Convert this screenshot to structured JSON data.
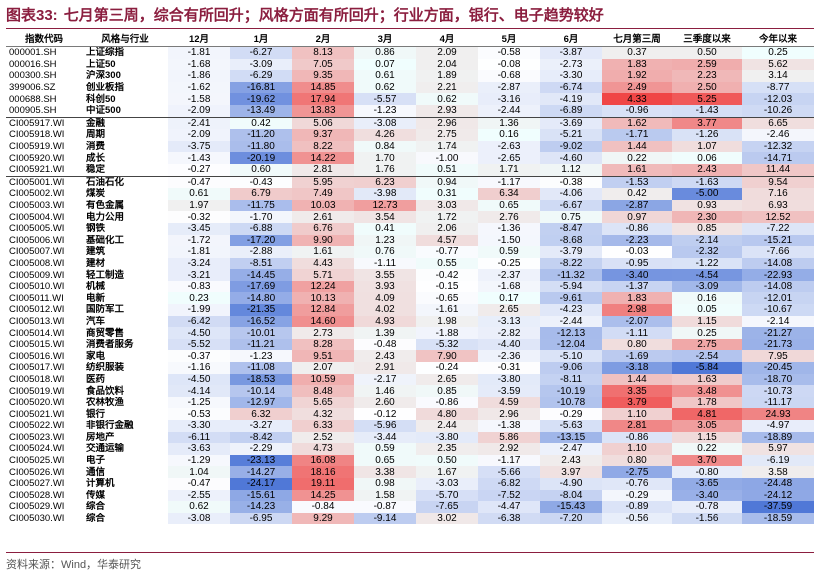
{
  "title": {
    "prefix": "图表33:",
    "text": "七月第三周，综合有所回升；风格方面有所回升；行业方面，银行、电子趋势较好"
  },
  "source": "资料来源：Wind，华泰研究",
  "columns": [
    "指数代码",
    "风格与行业",
    "12月",
    "1月",
    "2月",
    "3月",
    "4月",
    "5月",
    "6月",
    "七月第三周",
    "三季度以来",
    "今年以来"
  ],
  "rows": [
    {
      "code": "000001.SH",
      "name": "上证综指",
      "bold": true,
      "values": [
        "-1.81",
        "-6.27",
        "8.13",
        "0.86",
        "2.09",
        "-0.58",
        "-3.87",
        "0.37",
        "0.50",
        "0.25"
      ]
    },
    {
      "code": "000016.SH",
      "name": "上证50",
      "bold": true,
      "values": [
        "-1.68",
        "-3.09",
        "7.05",
        "0.07",
        "2.04",
        "-0.08",
        "-2.73",
        "1.83",
        "2.59",
        "5.62"
      ]
    },
    {
      "code": "000300.SH",
      "name": "沪深300",
      "bold": true,
      "values": [
        "-1.86",
        "-6.29",
        "9.35",
        "0.61",
        "1.89",
        "-0.68",
        "-3.30",
        "1.92",
        "2.23",
        "3.14"
      ]
    },
    {
      "code": "399006.SZ",
      "name": "创业板指",
      "bold": true,
      "values": [
        "-1.62",
        "-16.81",
        "14.85",
        "0.62",
        "2.21",
        "-2.87",
        "-6.74",
        "2.49",
        "2.50",
        "-8.77"
      ]
    },
    {
      "code": "000688.SH",
      "name": "科创50",
      "bold": true,
      "values": [
        "-1.58",
        "-19.62",
        "17.94",
        "-5.57",
        "0.62",
        "-3.16",
        "-4.19",
        "4.33",
        "5.25",
        "-12.03"
      ]
    },
    {
      "code": "000905.SH",
      "name": "中证500",
      "bold": true,
      "values": [
        "-2.09",
        "-13.49",
        "13.83",
        "-1.23",
        "2.93",
        "-2.44",
        "-6.89",
        "-0.96",
        "-1.43",
        "-10.26"
      ],
      "sep": false
    },
    {
      "code": "CI005917.WI",
      "name": "金融",
      "bold": true,
      "sep": true,
      "values": [
        "-2.41",
        "0.42",
        "5.06",
        "-3.08",
        "2.96",
        "1.36",
        "-3.69",
        "1.62",
        "3.77",
        "6.65"
      ]
    },
    {
      "code": "CI005918.WI",
      "name": "周期",
      "bold": true,
      "values": [
        "-2.09",
        "-11.20",
        "9.37",
        "4.26",
        "2.75",
        "0.16",
        "-5.21",
        "-1.71",
        "-1.26",
        "-2.46"
      ]
    },
    {
      "code": "CI005919.WI",
      "name": "消费",
      "bold": true,
      "values": [
        "-3.75",
        "-11.80",
        "8.22",
        "0.84",
        "1.74",
        "-2.63",
        "-9.02",
        "1.44",
        "1.07",
        "-12.32"
      ]
    },
    {
      "code": "CI005920.WI",
      "name": "成长",
      "bold": true,
      "values": [
        "-1.43",
        "-20.19",
        "14.22",
        "1.70",
        "-1.00",
        "-2.65",
        "-4.60",
        "0.22",
        "0.06",
        "-14.71"
      ]
    },
    {
      "code": "CI005921.WI",
      "name": "稳定",
      "bold": true,
      "values": [
        "-0.27",
        "0.60",
        "2.81",
        "1.76",
        "0.51",
        "1.71",
        "1.12",
        "1.61",
        "2.43",
        "11.44"
      ]
    },
    {
      "code": "CI005001.WI",
      "name": "石油石化",
      "bold": true,
      "sep": true,
      "values": [
        "-0.47",
        "-0.43",
        "5.95",
        "6.23",
        "0.94",
        "-1.17",
        "-0.38",
        "-1.53",
        "-1.63",
        "9.54"
      ]
    },
    {
      "code": "CI005002.WI",
      "name": "煤炭",
      "bold": true,
      "values": [
        "0.61",
        "6.79",
        "7.49",
        "-3.98",
        "0.31",
        "6.34",
        "-4.06",
        "0.42",
        "-5.00",
        "7.16"
      ]
    },
    {
      "code": "CI005003.WI",
      "name": "有色金属",
      "bold": true,
      "values": [
        "1.97",
        "-11.75",
        "10.03",
        "12.73",
        "3.03",
        "0.65",
        "-6.67",
        "-2.87",
        "0.93",
        "6.93"
      ]
    },
    {
      "code": "CI005004.WI",
      "name": "电力公用",
      "bold": true,
      "values": [
        "-0.32",
        "-1.70",
        "2.61",
        "3.54",
        "1.72",
        "2.76",
        "0.75",
        "0.97",
        "2.30",
        "12.52"
      ]
    },
    {
      "code": "CI005005.WI",
      "name": "钢铁",
      "bold": true,
      "values": [
        "-3.45",
        "-6.88",
        "6.76",
        "0.41",
        "2.06",
        "-1.36",
        "-8.47",
        "-0.86",
        "0.85",
        "-7.22"
      ]
    },
    {
      "code": "CI005006.WI",
      "name": "基础化工",
      "bold": true,
      "values": [
        "-1.72",
        "-17.20",
        "9.90",
        "1.23",
        "4.57",
        "-1.50",
        "-8.68",
        "-2.23",
        "-2.14",
        "-15.21"
      ]
    },
    {
      "code": "CI005007.WI",
      "name": "建筑",
      "bold": true,
      "values": [
        "-1.81",
        "-2.88",
        "1.61",
        "0.76",
        "-0.77",
        "0.59",
        "-3.79",
        "-0.03",
        "-2.32",
        "-7.66"
      ]
    },
    {
      "code": "CI005008.WI",
      "name": "建材",
      "bold": true,
      "values": [
        "-3.24",
        "-8.51",
        "4.43",
        "-1.11",
        "0.55",
        "-0.25",
        "-8.22",
        "-0.95",
        "-1.22",
        "-14.08"
      ]
    },
    {
      "code": "CI005009.WI",
      "name": "轻工制造",
      "bold": true,
      "values": [
        "-3.21",
        "-14.45",
        "5.71",
        "3.55",
        "-0.42",
        "-2.37",
        "-11.32",
        "-3.40",
        "-4.54",
        "-22.93"
      ]
    },
    {
      "code": "CI005010.WI",
      "name": "机械",
      "bold": true,
      "values": [
        "-0.83",
        "-17.69",
        "12.24",
        "3.93",
        "-0.15",
        "-1.68",
        "-5.94",
        "-1.37",
        "-3.09",
        "-14.08"
      ]
    },
    {
      "code": "CI005011.WI",
      "name": "电新",
      "bold": true,
      "values": [
        "0.23",
        "-14.80",
        "10.13",
        "4.09",
        "-0.65",
        "0.17",
        "-9.61",
        "1.83",
        "0.16",
        "-12.01"
      ]
    },
    {
      "code": "CI005012.WI",
      "name": "国防军工",
      "bold": true,
      "values": [
        "-1.99",
        "-21.35",
        "12.84",
        "4.02",
        "-1.61",
        "2.65",
        "-4.23",
        "2.98",
        "0.05",
        "-10.67"
      ]
    },
    {
      "code": "CI005013.WI",
      "name": "汽车",
      "bold": true,
      "values": [
        "-6.42",
        "-16.52",
        "14.60",
        "4.93",
        "1.98",
        "-3.13",
        "-2.44",
        "-2.07",
        "1.15",
        "-2.14"
      ]
    },
    {
      "code": "CI005014.WI",
      "name": "商贸零售",
      "bold": true,
      "values": [
        "-4.50",
        "-10.01",
        "2.73",
        "1.39",
        "-1.88",
        "-2.82",
        "-12.13",
        "-1.11",
        "0.25",
        "-21.27"
      ]
    },
    {
      "code": "CI005015.WI",
      "name": "消费者服务",
      "bold": true,
      "values": [
        "-5.52",
        "-11.21",
        "8.28",
        "-0.48",
        "-5.32",
        "-4.40",
        "-12.04",
        "0.80",
        "2.75",
        "-21.73"
      ]
    },
    {
      "code": "CI005016.WI",
      "name": "家电",
      "bold": true,
      "values": [
        "-0.37",
        "-1.23",
        "9.51",
        "2.43",
        "7.90",
        "-2.36",
        "-5.10",
        "-1.69",
        "-2.54",
        "7.95"
      ]
    },
    {
      "code": "CI005017.WI",
      "name": "纺织服装",
      "bold": true,
      "values": [
        "-1.16",
        "-11.08",
        "2.07",
        "2.91",
        "-0.24",
        "-0.31",
        "-9.06",
        "-3.18",
        "-5.84",
        "-20.45"
      ]
    },
    {
      "code": "CI005018.WI",
      "name": "医药",
      "bold": true,
      "values": [
        "-4.50",
        "-18.53",
        "10.59",
        "-2.17",
        "2.65",
        "-3.80",
        "-8.11",
        "1.44",
        "1.63",
        "-18.70"
      ]
    },
    {
      "code": "CI005019.WI",
      "name": "食品饮料",
      "bold": true,
      "values": [
        "-4.14",
        "-10.14",
        "8.48",
        "1.46",
        "0.85",
        "-3.59",
        "-10.19",
        "3.35",
        "3.48",
        "-10.73"
      ]
    },
    {
      "code": "CI005020.WI",
      "name": "农林牧渔",
      "bold": true,
      "values": [
        "-1.25",
        "-12.97",
        "5.65",
        "2.60",
        "-0.86",
        "4.59",
        "-10.78",
        "3.79",
        "1.78",
        "-11.17"
      ]
    },
    {
      "code": "CI005021.WI",
      "name": "银行",
      "bold": true,
      "values": [
        "-0.53",
        "6.32",
        "4.32",
        "-0.12",
        "4.80",
        "2.96",
        "-0.29",
        "1.10",
        "4.81",
        "24.93"
      ]
    },
    {
      "code": "CI005022.WI",
      "name": "非银行金融",
      "bold": true,
      "values": [
        "-3.30",
        "-3.27",
        "6.33",
        "-5.96",
        "2.44",
        "-1.38",
        "-5.63",
        "2.81",
        "3.05",
        "-4.97"
      ]
    },
    {
      "code": "CI005023.WI",
      "name": "房地产",
      "bold": true,
      "values": [
        "-6.11",
        "-8.42",
        "2.52",
        "-3.44",
        "-3.80",
        "5.86",
        "-13.15",
        "-0.86",
        "1.15",
        "-18.89"
      ]
    },
    {
      "code": "CI005024.WI",
      "name": "交通运输",
      "bold": true,
      "values": [
        "-3.63",
        "-2.29",
        "4.73",
        "0.59",
        "2.35",
        "2.92",
        "-2.47",
        "1.10",
        "0.22",
        "5.97"
      ]
    },
    {
      "code": "CI005025.WI",
      "name": "电子",
      "bold": true,
      "values": [
        "-1.29",
        "-23.13",
        "16.08",
        "0.65",
        "0.50",
        "-1.17",
        "2.43",
        "0.80",
        "3.70",
        "-6.19"
      ]
    },
    {
      "code": "CI005026.WI",
      "name": "通信",
      "bold": true,
      "values": [
        "1.04",
        "-14.27",
        "18.16",
        "3.38",
        "1.67",
        "-5.66",
        "3.97",
        "-2.75",
        "-0.80",
        "3.58"
      ]
    },
    {
      "code": "CI005027.WI",
      "name": "计算机",
      "bold": true,
      "values": [
        "-0.47",
        "-24.17",
        "19.11",
        "0.98",
        "-3.03",
        "-6.82",
        "-4.90",
        "-0.76",
        "-3.65",
        "-24.48"
      ]
    },
    {
      "code": "CI005028.WI",
      "name": "传媒",
      "bold": true,
      "values": [
        "-2.55",
        "-15.61",
        "14.25",
        "1.58",
        "-5.70",
        "-7.52",
        "-8.04",
        "-0.29",
        "-3.40",
        "-24.12"
      ]
    },
    {
      "code": "CI005029.WI",
      "name": "综合",
      "bold": true,
      "values": [
        "0.62",
        "-14.23",
        "-0.84",
        "-0.87",
        "-7.65",
        "-4.47",
        "-15.43",
        "-0.89",
        "-0.78",
        "-37.59"
      ]
    },
    {
      "code": "CI005030.WI",
      "name": "综合",
      "bold": true,
      "values": [
        "-3.08",
        "-6.95",
        "9.29",
        "-9.14",
        "3.02",
        "-6.38",
        "-7.20",
        "-0.56",
        "-1.56",
        "-18.59"
      ]
    }
  ]
}
